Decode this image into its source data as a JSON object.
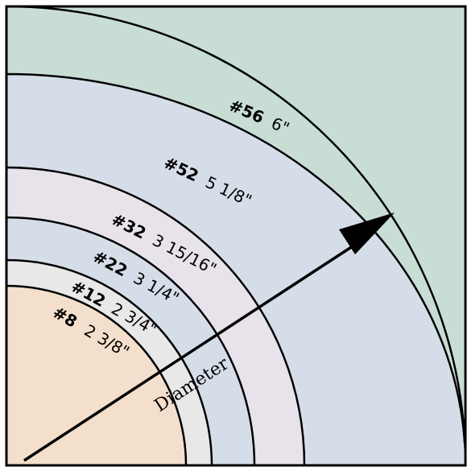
{
  "rings": [
    {
      "number": "#56",
      "diameter": "6\"",
      "color": "#c8ddd4"
    },
    {
      "number": "#52",
      "diameter": "5 1/8\"",
      "color": "#d5dde8"
    },
    {
      "number": "#32",
      "diameter": "3 15/16\"",
      "color": "#e8e3ea"
    },
    {
      "number": "#22",
      "diameter": "3 1/4\"",
      "color": "#d5dee8"
    },
    {
      "number": "#12",
      "diameter": "2 3/4\"",
      "color": "#e8e8e8"
    },
    {
      "number": "#8",
      "diameter": "2 3/8\"",
      "color": "#f3dfcb"
    }
  ],
  "arrow_label": "Diameter"
}
